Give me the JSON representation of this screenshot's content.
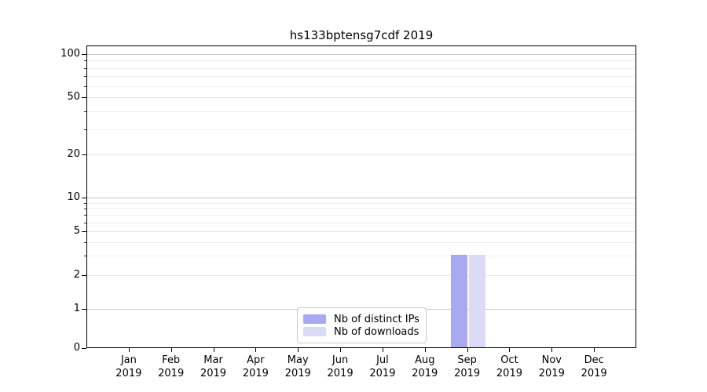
{
  "chart_data": {
    "type": "bar",
    "title": "hs133bptensg7cdf 2019",
    "x": {
      "categories": [
        "Jan",
        "Feb",
        "Mar",
        "Apr",
        "May",
        "Jun",
        "Jul",
        "Aug",
        "Sep",
        "Oct",
        "Nov",
        "Dec"
      ],
      "year_label": "2019"
    },
    "y": {
      "scale": "symlog",
      "ticks": [
        0,
        1,
        2,
        5,
        10,
        20,
        50,
        100
      ],
      "minor_ticks": [
        3,
        4,
        6,
        7,
        8,
        9,
        30,
        40,
        60,
        70,
        80,
        90
      ],
      "lim": [
        0,
        115
      ]
    },
    "series": [
      {
        "name": "Nb of distinct IPs",
        "color": "#a9a9f3",
        "values": [
          0,
          0,
          0,
          0,
          0,
          0,
          0,
          0,
          3,
          0,
          0,
          0
        ]
      },
      {
        "name": "Nb of downloads",
        "color": "#dbdbf8",
        "values": [
          0,
          0,
          0,
          0,
          0,
          0,
          0,
          0,
          3,
          0,
          0,
          0
        ]
      }
    ],
    "legend": {
      "position": "bottom-center",
      "entries": [
        "Nb of distinct IPs",
        "Nb of downloads"
      ]
    },
    "colors": {
      "grid_major": "#c8c8c8",
      "grid_labeled": "#e6e6e6",
      "grid_minor": "#efefef",
      "spine": "#000000",
      "text": "#000000",
      "background": "#ffffff"
    }
  }
}
